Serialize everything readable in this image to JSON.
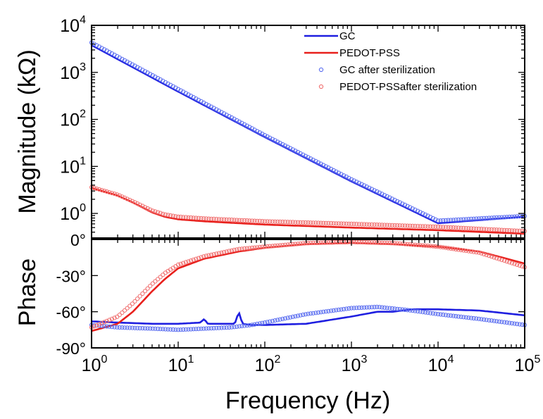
{
  "chart_data": [
    {
      "panel": "magnitude",
      "type": "line",
      "xscale": "log",
      "yscale": "log",
      "xlim": [
        1,
        100000
      ],
      "ylim": [
        0.3,
        10000
      ],
      "ylabel": "Magnitude (kΩ)",
      "ytick_labels": [
        {
          "value": 10000,
          "base": "10",
          "exp": "4"
        },
        {
          "value": 1000,
          "base": "10",
          "exp": "3"
        },
        {
          "value": 100,
          "base": "10",
          "exp": "2"
        },
        {
          "value": 10,
          "base": "10",
          "exp": "1"
        },
        {
          "value": 1,
          "base": "10",
          "exp": "0"
        }
      ],
      "series": [
        {
          "name": "GC",
          "style": "line",
          "color": "#1f1fe0",
          "x": [
            1,
            10,
            100,
            1000,
            10000,
            100000
          ],
          "y": [
            3800,
            390,
            42,
            4.8,
            0.62,
            0.85
          ]
        },
        {
          "name": "PEDOT-PSS",
          "style": "line",
          "color": "#e8201c",
          "x": [
            1,
            2,
            3,
            5,
            7,
            10,
            20,
            50,
            100,
            1000,
            10000,
            100000
          ],
          "y": [
            3.5,
            2.4,
            1.7,
            1.05,
            0.85,
            0.75,
            0.68,
            0.62,
            0.58,
            0.5,
            0.44,
            0.37
          ]
        },
        {
          "name": "GC after sterilization",
          "style": "markers",
          "color": "#5b6ef0",
          "x": [
            1,
            10,
            100,
            1000,
            10000,
            100000
          ],
          "y": [
            4300,
            440,
            46,
            5.3,
            0.7,
            0.88
          ]
        },
        {
          "name": "PEDOT-PSSafter sterilization",
          "style": "markers",
          "color": "#f07070",
          "x": [
            1,
            2,
            3,
            5,
            7,
            10,
            20,
            50,
            100,
            1000,
            10000,
            100000
          ],
          "y": [
            3.6,
            2.5,
            1.8,
            1.15,
            0.95,
            0.85,
            0.78,
            0.72,
            0.68,
            0.6,
            0.52,
            0.42
          ]
        }
      ],
      "legend": {
        "position": "top-right"
      }
    },
    {
      "panel": "phase",
      "type": "line",
      "xscale": "log",
      "xlim": [
        1,
        100000
      ],
      "ylim": [
        -90,
        0
      ],
      "ylabel": "Phase",
      "xlabel": "Frequency (Hz)",
      "ytick_labels": [
        {
          "value": 0,
          "text": "0°"
        },
        {
          "value": -30,
          "text": "-30°"
        },
        {
          "value": -60,
          "text": "-60°"
        },
        {
          "value": -90,
          "text": "-90°"
        }
      ],
      "xtick_labels": [
        {
          "value": 1,
          "base": "10",
          "exp": "0"
        },
        {
          "value": 10,
          "base": "10",
          "exp": "1"
        },
        {
          "value": 100,
          "base": "10",
          "exp": "2"
        },
        {
          "value": 1000,
          "base": "10",
          "exp": "3"
        },
        {
          "value": 10000,
          "base": "10",
          "exp": "4"
        },
        {
          "value": 100000,
          "base": "10",
          "exp": "5"
        }
      ],
      "series": [
        {
          "name": "GC",
          "style": "line",
          "color": "#1f1fe0",
          "x": [
            1,
            2,
            5,
            10,
            18,
            20,
            22,
            30,
            45,
            50,
            55,
            70,
            100,
            300,
            1000,
            2000,
            3000,
            5000,
            10000,
            30000,
            100000
          ],
          "y": [
            -68,
            -69,
            -70,
            -70,
            -69,
            -66,
            -70,
            -70,
            -70,
            -60,
            -70,
            -71,
            -71,
            -70,
            -64,
            -60,
            -60,
            -58,
            -58,
            -59,
            -63
          ]
        },
        {
          "name": "PEDOT-PSS",
          "style": "line",
          "color": "#e8201c",
          "x": [
            1,
            2,
            3,
            5,
            7,
            10,
            20,
            50,
            100,
            300,
            1000,
            3000,
            10000,
            30000,
            100000
          ],
          "y": [
            -76,
            -70,
            -60,
            -43,
            -33,
            -24,
            -16,
            -10,
            -7,
            -4,
            -3,
            -4,
            -6,
            -10,
            -20
          ]
        },
        {
          "name": "GC after sterilization",
          "style": "markers",
          "color": "#5b6ef0",
          "x": [
            1,
            2,
            5,
            10,
            20,
            40,
            70,
            100,
            300,
            1000,
            2000,
            5000,
            10000,
            30000,
            100000
          ],
          "y": [
            -71,
            -73,
            -74,
            -75,
            -74,
            -73,
            -71,
            -69,
            -62,
            -57,
            -56,
            -59,
            -62,
            -66,
            -71
          ]
        },
        {
          "name": "PEDOT-PSSafter sterilization",
          "style": "markers",
          "color": "#f07070",
          "x": [
            1,
            2,
            3,
            5,
            7,
            10,
            20,
            50,
            100,
            300,
            1000,
            3000,
            10000,
            30000,
            100000
          ],
          "y": [
            -73,
            -64,
            -53,
            -37,
            -28,
            -21,
            -14,
            -8,
            -6,
            -3,
            -2,
            -3,
            -6,
            -11,
            -23
          ]
        }
      ]
    }
  ]
}
